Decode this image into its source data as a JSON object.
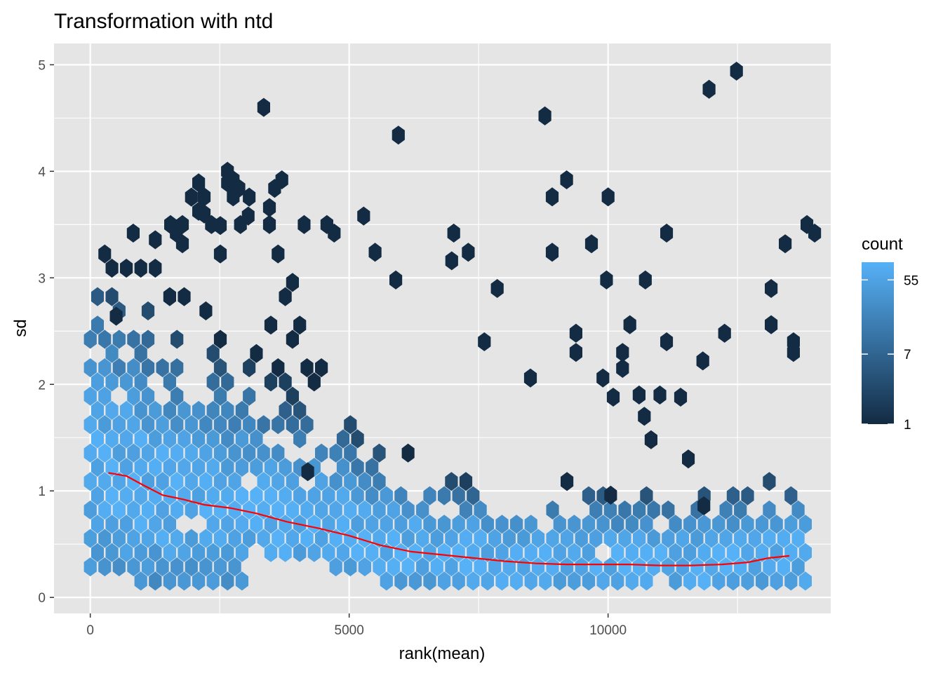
{
  "chart_data": {
    "type": "hexbin",
    "title": "Transformation with ntd",
    "xlabel": "rank(mean)",
    "ylabel": "sd",
    "xlim": [
      -700,
      14300
    ],
    "ylim": [
      -0.15,
      5.2
    ],
    "x_ticks": [
      {
        "value": 0,
        "label": "0"
      },
      {
        "value": 5000,
        "label": "5000"
      },
      {
        "value": 10000,
        "label": "10000"
      }
    ],
    "y_ticks": [
      {
        "value": 0,
        "label": "0"
      },
      {
        "value": 1,
        "label": "1"
      },
      {
        "value": 2,
        "label": "2"
      },
      {
        "value": 3,
        "label": "3"
      },
      {
        "value": 4,
        "label": "4"
      },
      {
        "value": 5,
        "label": "5"
      }
    ],
    "grid": true,
    "background": "#e5e5e5",
    "legend": {
      "title": "count",
      "position": "right",
      "scale": "log",
      "breaks": [
        {
          "value": 55,
          "label": "55"
        },
        {
          "value": 7,
          "label": "7"
        },
        {
          "value": 1,
          "label": "1"
        }
      ],
      "range": [
        1,
        90
      ],
      "low_color": "#132b43",
      "high_color": "#56b1f7"
    },
    "trend_line": {
      "color": "#ff0000",
      "x": [
        350,
        700,
        1000,
        1400,
        1800,
        2200,
        2700,
        3200,
        3800,
        4400,
        5000,
        5600,
        6200,
        6800,
        7400,
        8000,
        8600,
        9200,
        9800,
        10400,
        11000,
        11600,
        12200,
        12700,
        13100,
        13500
      ],
      "y": [
        1.17,
        1.14,
        1.06,
        0.96,
        0.92,
        0.87,
        0.84,
        0.79,
        0.71,
        0.65,
        0.58,
        0.49,
        0.43,
        0.4,
        0.37,
        0.34,
        0.32,
        0.31,
        0.31,
        0.31,
        0.3,
        0.3,
        0.31,
        0.33,
        0.37,
        0.39
      ]
    },
    "outliers": [
      [
        3350,
        4.6
      ],
      [
        5950,
        4.34
      ],
      [
        8780,
        4.52
      ],
      [
        11950,
        4.77
      ],
      [
        12480,
        4.94
      ],
      [
        2650,
        4.0
      ],
      [
        2760,
        3.92
      ],
      [
        2870,
        3.84
      ],
      [
        3560,
        3.84
      ],
      [
        3700,
        3.92
      ],
      [
        2200,
        3.76
      ],
      [
        2760,
        3.76
      ],
      [
        8920,
        3.76
      ],
      [
        10000,
        3.76
      ],
      [
        9200,
        3.92
      ],
      [
        2200,
        3.6
      ],
      [
        3460,
        3.66
      ],
      [
        3050,
        3.58
      ],
      [
        5280,
        3.58
      ],
      [
        1550,
        3.5
      ],
      [
        1780,
        3.5
      ],
      [
        2340,
        3.5
      ],
      [
        2900,
        3.5
      ],
      [
        3460,
        3.5
      ],
      [
        4130,
        3.5
      ],
      [
        4570,
        3.5
      ],
      [
        13840,
        3.5
      ],
      [
        830,
        3.42
      ],
      [
        1660,
        3.42
      ],
      [
        4710,
        3.42
      ],
      [
        7020,
        3.42
      ],
      [
        11130,
        3.42
      ],
      [
        13990,
        3.42
      ],
      [
        9680,
        3.32
      ],
      [
        13420,
        3.32
      ],
      [
        1780,
        3.32
      ],
      [
        8920,
        3.24
      ],
      [
        7300,
        3.24
      ],
      [
        5500,
        3.24
      ],
      [
        6980,
        3.16
      ],
      [
        7860,
        2.9
      ],
      [
        9970,
        2.98
      ],
      [
        10720,
        2.98
      ],
      [
        13150,
        2.9
      ],
      [
        5900,
        2.98
      ],
      [
        9380,
        2.48
      ],
      [
        10420,
        2.56
      ],
      [
        12250,
        2.48
      ],
      [
        11130,
        2.4
      ],
      [
        7610,
        2.4
      ],
      [
        9380,
        2.3
      ],
      [
        13150,
        2.56
      ],
      [
        11830,
        2.22
      ],
      [
        10280,
        2.3
      ],
      [
        10280,
        2.15
      ],
      [
        9900,
        2.06
      ],
      [
        10600,
        1.9
      ],
      [
        8500,
        2.06
      ],
      [
        10100,
        1.88
      ],
      [
        11000,
        1.9
      ],
      [
        11400,
        1.88
      ],
      [
        10700,
        1.7
      ],
      [
        10050,
        0.96
      ],
      [
        11550,
        1.3
      ],
      [
        11850,
        0.86
      ],
      [
        10830,
        1.48
      ],
      [
        4200,
        1.18
      ],
      [
        500,
        2.64
      ],
      [
        13580,
        2.4
      ],
      [
        13580,
        2.3
      ]
    ]
  }
}
